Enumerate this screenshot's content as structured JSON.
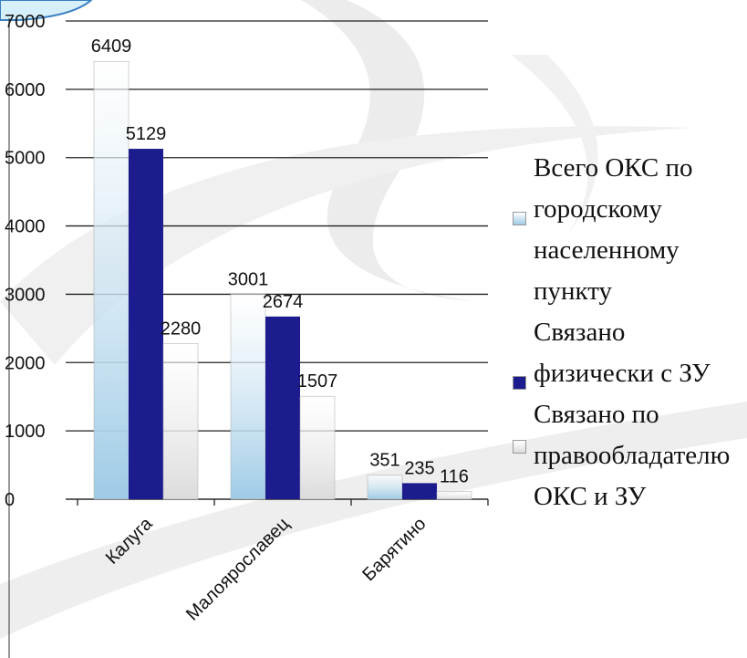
{
  "chart_data": {
    "type": "bar",
    "categories": [
      "Калуга",
      "Малоярославец",
      "Барятино"
    ],
    "series": [
      {
        "name": "Всего ОКС по городскому населенному пункту",
        "color": "#9fcbe6",
        "values": [
          6409,
          3001,
          351
        ]
      },
      {
        "name": "Связано физически с ЗУ",
        "color": "#1c1c8e",
        "values": [
          5129,
          2674,
          235
        ]
      },
      {
        "name": "Связано по правообладателю ОКС и ЗУ",
        "color": "#dcdcdc",
        "values": [
          2280,
          1507,
          116
        ]
      }
    ],
    "ylim": [
      0,
      7000
    ],
    "yticks": [
      0,
      1000,
      2000,
      3000,
      4000,
      5000,
      6000,
      7000
    ],
    "grid": true,
    "legend": "right"
  }
}
